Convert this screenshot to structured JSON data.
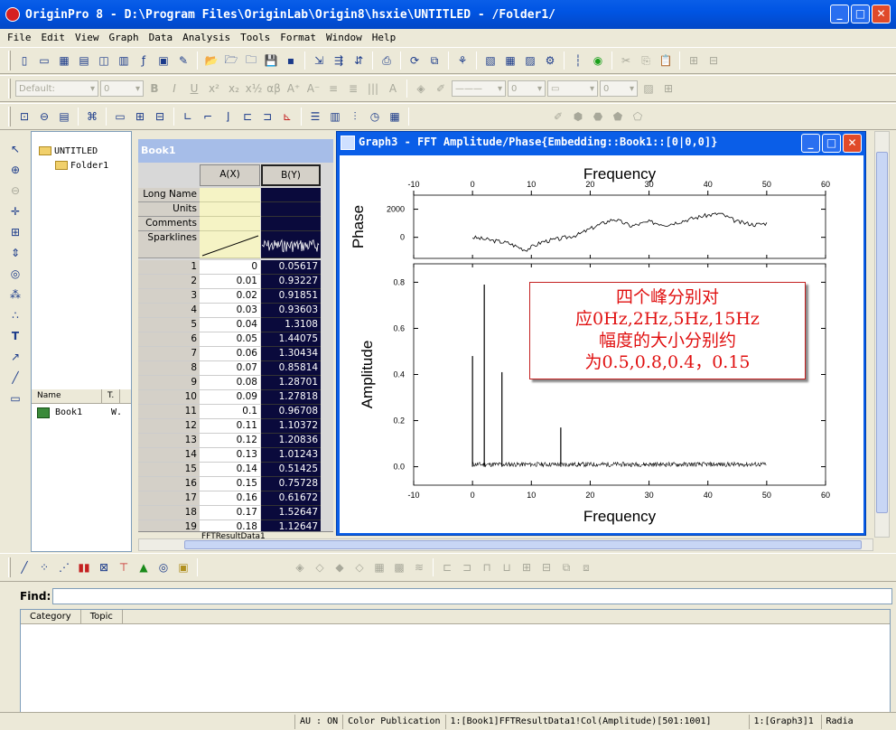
{
  "app": {
    "title": "OriginPro 8 - D:\\Program Files\\OriginLab\\Origin8\\hsxie\\UNTITLED - /Folder1/"
  },
  "window_buttons": {
    "minimize": "_",
    "maximize": "□",
    "close": "✕"
  },
  "menu": [
    "File",
    "Edit",
    "View",
    "Graph",
    "Data",
    "Analysis",
    "Tools",
    "Format",
    "Window",
    "Help"
  ],
  "format_toolbar": {
    "font": "Default:",
    "size": "0",
    "line_width": "0",
    "pattern_width": "0"
  },
  "project": {
    "root": "UNTITLED",
    "folder": "Folder1",
    "list_cols": [
      "Name",
      "T."
    ],
    "list_items": [
      {
        "name": "Book1",
        "type": "W."
      }
    ]
  },
  "book": {
    "title": "Book1",
    "col_a": "A(X)",
    "col_b": "B(Y)",
    "row_labels": [
      "Long Name",
      "Units",
      "Comments",
      "Sparklines"
    ],
    "rows": [
      {
        "i": "1",
        "a": "0",
        "b": "0.05617"
      },
      {
        "i": "2",
        "a": "0.01",
        "b": "0.93227"
      },
      {
        "i": "3",
        "a": "0.02",
        "b": "0.91851"
      },
      {
        "i": "4",
        "a": "0.03",
        "b": "0.93603"
      },
      {
        "i": "5",
        "a": "0.04",
        "b": "1.3108"
      },
      {
        "i": "6",
        "a": "0.05",
        "b": "1.44075"
      },
      {
        "i": "7",
        "a": "0.06",
        "b": "1.30434"
      },
      {
        "i": "8",
        "a": "0.07",
        "b": "0.85814"
      },
      {
        "i": "9",
        "a": "0.08",
        "b": "1.28701"
      },
      {
        "i": "10",
        "a": "0.09",
        "b": "1.27818"
      },
      {
        "i": "11",
        "a": "0.1",
        "b": "0.96708"
      },
      {
        "i": "12",
        "a": "0.11",
        "b": "1.10372"
      },
      {
        "i": "13",
        "a": "0.12",
        "b": "1.20836"
      },
      {
        "i": "14",
        "a": "0.13",
        "b": "1.01243"
      },
      {
        "i": "15",
        "a": "0.14",
        "b": "0.51425"
      },
      {
        "i": "16",
        "a": "0.15",
        "b": "0.75728"
      },
      {
        "i": "17",
        "a": "0.16",
        "b": "0.61672"
      },
      {
        "i": "18",
        "a": "0.17",
        "b": "1.52647"
      },
      {
        "i": "19",
        "a": "0.18",
        "b": "1.12647"
      }
    ],
    "sheet_tab": "FFTResultData1"
  },
  "graph": {
    "title": "Graph3 - FFT Amplitude/Phase{Embedding::Book1::[0|0,0]}",
    "annotation": [
      "四个峰分别对",
      "应0Hz,2Hz,5Hz,15Hz",
      "幅度的大小分别约",
      "为0.5,0.8,0.4，0.15"
    ]
  },
  "chart_data": [
    {
      "type": "line",
      "xlabel": "Frequency",
      "ylabel": "Phase",
      "xlim": [
        -10,
        60
      ],
      "ylim": [
        -1500,
        3000
      ],
      "x_ticks": [
        "-10",
        "0",
        "10",
        "20",
        "30",
        "40",
        "50",
        "60"
      ],
      "y_ticks": [
        "2000",
        "0"
      ],
      "series": [
        {
          "x": [
            0,
            3,
            6,
            9,
            12,
            15,
            18,
            21,
            24,
            27,
            30,
            33,
            36,
            39,
            42,
            45,
            48,
            50
          ],
          "y": [
            0,
            -200,
            -400,
            -900,
            -300,
            -100,
            200,
            800,
            1300,
            800,
            1100,
            900,
            1200,
            1500,
            1700,
            1100,
            900,
            1000
          ]
        }
      ]
    },
    {
      "type": "line",
      "xlabel": "Frequency",
      "ylabel": "Amplitude",
      "xlim": [
        -10,
        60
      ],
      "ylim": [
        -0.08,
        0.88
      ],
      "x_ticks": [
        "-10",
        "0",
        "10",
        "20",
        "30",
        "40",
        "50",
        "60"
      ],
      "y_ticks": [
        "0.0",
        "0.2",
        "0.4",
        "0.6",
        "0.8"
      ],
      "peaks": [
        {
          "x": 0,
          "y": 0.48
        },
        {
          "x": 2,
          "y": 0.79
        },
        {
          "x": 5,
          "y": 0.41
        },
        {
          "x": 15,
          "y": 0.17
        }
      ],
      "noise_level": 0.02
    }
  ],
  "find": {
    "label": "Find:",
    "cols": [
      "Category",
      "Topic"
    ]
  },
  "status": [
    "AU : ON",
    "Color Publication",
    "1:[Book1]FFTResultData1!Col(Amplitude)[501:1001]",
    "1:[Graph3]1",
    "Radia"
  ]
}
